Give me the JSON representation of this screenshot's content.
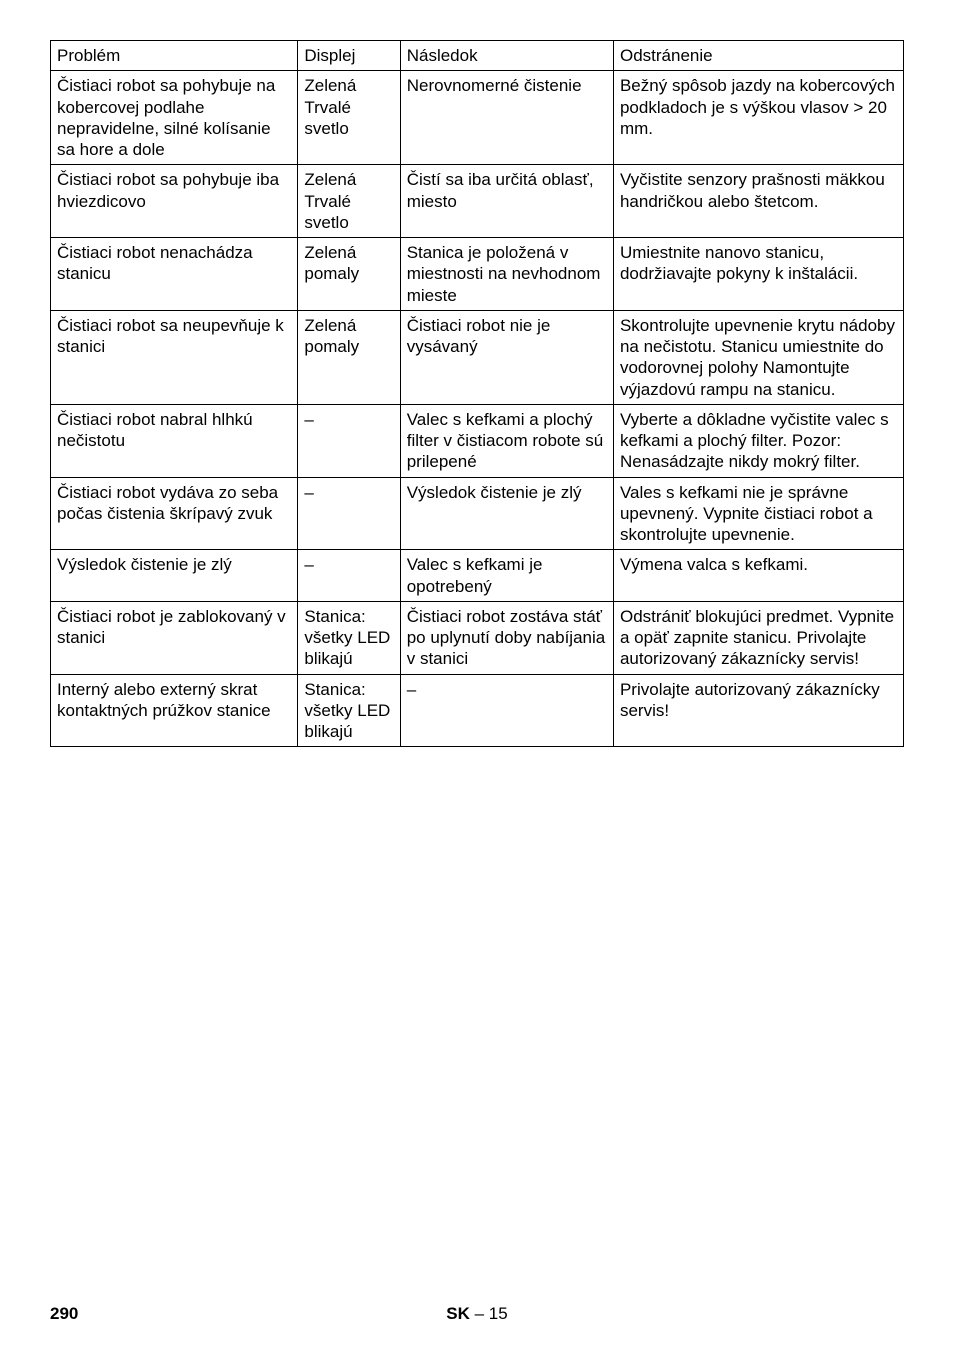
{
  "table": {
    "headers": [
      "Problém",
      "Displej",
      "Následok",
      "Odstránenie"
    ],
    "rows": [
      [
        "Čistiaci robot sa pohybuje na kobercovej podlahe nepravidelne, silné kolísanie sa hore a dole",
        "Zelená Trvalé svetlo",
        "Nerovnomerné čistenie",
        "Bežný spôsob jazdy na kobercových podkladoch je s výškou vlasov > 20 mm."
      ],
      [
        "Čistiaci robot sa pohybuje iba hviezdicovo",
        "Zelená Trvalé svetlo",
        "Čistí sa iba určitá oblasť, miesto",
        "Vyčistite senzory prašnosti mäkkou handričkou alebo štetcom."
      ],
      [
        "Čistiaci robot nenachádza stanicu",
        "Zelená pomaly",
        "Stanica je položená v miestnosti na nevhodnom mieste",
        "Umiestnite nanovo stanicu, dodržiavajte pokyny k inštalácii."
      ],
      [
        "Čistiaci robot sa neupevňuje k stanici",
        "Zelená pomaly",
        "Čistiaci robot nie je vysávaný",
        "Skontrolujte upevnenie krytu nádoby na nečistotu. Stanicu umiestnite do vodorovnej polohy Namontujte výjazdovú rampu na stanicu."
      ],
      [
        "Čistiaci robot nabral hlhkú nečistotu",
        "–",
        "Valec s kefkami a plochý filter v čistiacom robote sú prilepené",
        "Vyberte a dôkladne vyčistite valec s kefkami a plochý filter. Pozor: Nenasádzajte nikdy mokrý filter."
      ],
      [
        "Čistiaci robot vydáva zo seba počas čistenia škrípavý zvuk",
        "–",
        "Výsledok čistenie je zlý",
        "Vales s kefkami nie je správne upevnený. Vypnite čistiaci robot a skontrolujte upevnenie."
      ],
      [
        "Výsledok čistenie je zlý",
        "–",
        "Valec s kefkami je opotrebený",
        "Výmena valca s kefkami."
      ],
      [
        "Čistiaci robot je zablokovaný v stanici",
        "Stanica: všetky LED blikajú",
        "Čistiaci robot zostáva stáť po uplynutí doby nabíjania v stanici",
        "Odstrániť blokujúci predmet. Vypnite a opäť zapnite stanicu. Privolajte autorizovaný zákaznícky servis!"
      ],
      [
        "Interný alebo externý skrat kontaktných prúžkov stanice",
        "Stanica: všetky LED blikajú",
        "–",
        "Privolajte autorizovaný zákaznícky servis!"
      ]
    ]
  },
  "footer": {
    "page": "290",
    "lang": "SK",
    "pagelocal": "– 15"
  }
}
